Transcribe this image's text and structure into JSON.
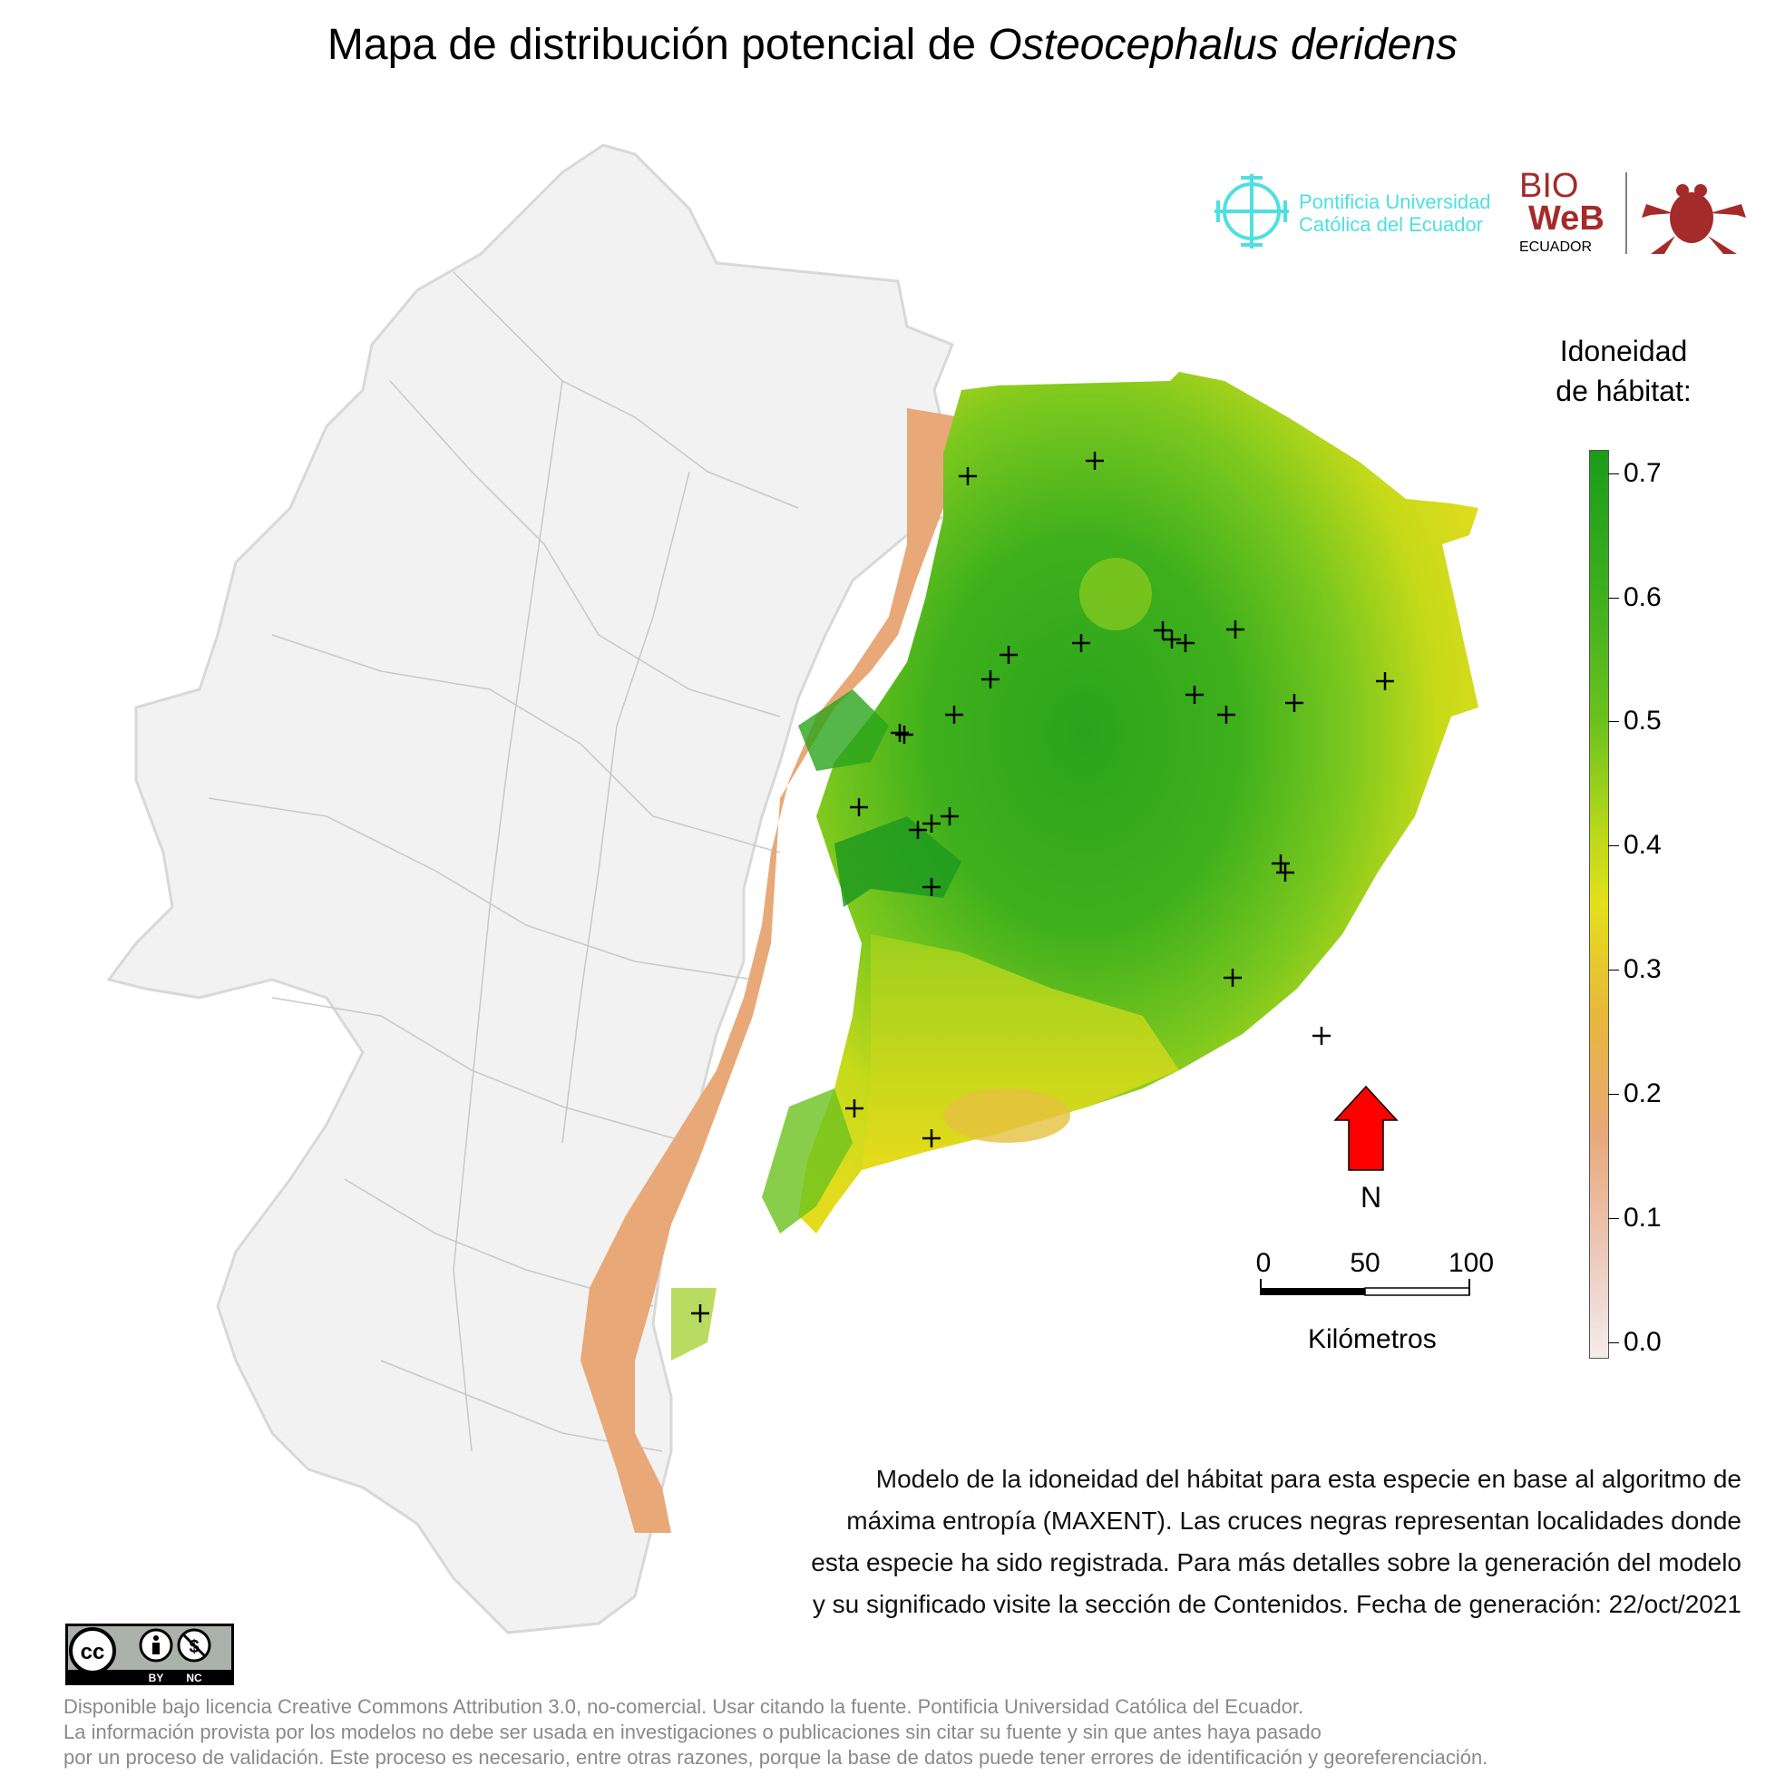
{
  "title": {
    "prefix": "Mapa de distribución potencial de ",
    "species": "Osteocephalus deridens"
  },
  "logos": {
    "puce_line1": "Pontificia Universidad",
    "puce_line2": "Católica del Ecuador",
    "bioweb_line1": "BIO",
    "bioweb_line2": "WeB",
    "bioweb_line3": "ECUADOR"
  },
  "legend": {
    "title_line1": "Idoneidad",
    "title_line2": "de hábitat:",
    "ticks": [
      "0.7",
      "0.6",
      "0.5",
      "0.4",
      "0.3",
      "0.2",
      "0.1",
      "0.0"
    ]
  },
  "scale": {
    "labels": [
      "0",
      "50",
      "100"
    ],
    "unit": "Kilómetros"
  },
  "north": {
    "label": "N"
  },
  "description": {
    "line1": "Modelo de la idoneidad del hábitat para esta especie en base al algoritmo de",
    "line2": "máxima entropía (MAXENT). Las cruces negras representan localidades donde",
    "line3": "esta especie ha sido registrada. Para más detalles sobre la generación del modelo",
    "line4": "y su significado visite la sección de Contenidos. Fecha de generación: 22/oct/2021"
  },
  "license": {
    "cc": "cc",
    "by": "BY",
    "nc": "NC"
  },
  "footer": {
    "line1": "Disponible bajo licencia Creative Commons Attribution 3.0, no-comercial. Usar citando la fuente. Pontificia Universidad Católica del Ecuador.",
    "line2": "La información provista por los modelos no debe ser usada en investigaciones o publicaciones sin citar su fuente y sin que antes haya pasado",
    "line3": "por un proceso de validación. Este proceso es necesario, entre otras razones, porque la base de datos puede tener errores de identificación y georeferenciación."
  },
  "colors": {
    "high": "#1a9c1a",
    "mid": "#e3e01a",
    "low": "#e8a878",
    "none": "#f2f2f2",
    "puce": "#4ee0e0",
    "bioweb": "#a52a2a",
    "north_arrow": "#ff0000"
  }
}
